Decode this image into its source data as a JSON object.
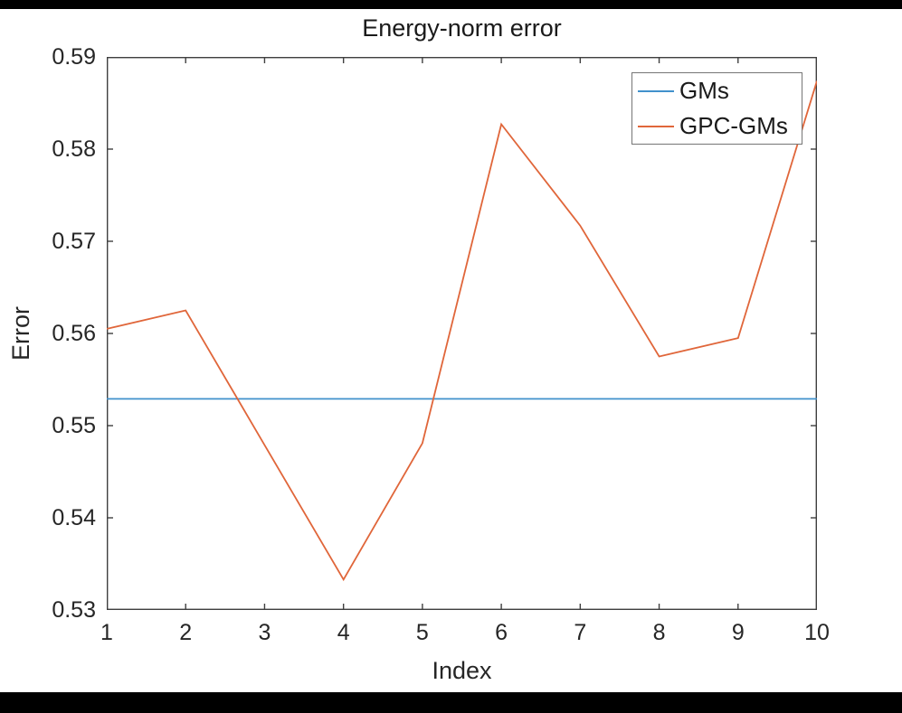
{
  "figure": {
    "title": "Energy-norm error",
    "xlabel": "Index",
    "ylabel": "Error"
  },
  "legend": {
    "position": "top-right",
    "entries": [
      {
        "label": "GMs"
      },
      {
        "label": "GPC-GMs"
      }
    ]
  },
  "colors": {
    "gms_line": "#4191CC",
    "gpc_gms_line": "#E0663A",
    "axis": "#3f3f3f",
    "text": "#262626",
    "plot_background": "#ffffff",
    "frame_background": "#000000"
  },
  "chart_data": {
    "type": "line",
    "title": "Energy-norm error",
    "xlabel": "Index",
    "ylabel": "Error",
    "x": [
      1,
      2,
      3,
      4,
      5,
      6,
      7,
      8,
      9,
      10
    ],
    "series": [
      {
        "name": "GMs",
        "color": "#4191CC",
        "values": [
          0.5529,
          0.5529,
          0.5529,
          0.5529,
          0.5529,
          0.5529,
          0.5529,
          0.5529,
          0.5529,
          0.5529
        ]
      },
      {
        "name": "GPC-GMs",
        "color": "#E0663A",
        "values": [
          0.5605,
          0.5625,
          0.5479,
          0.5333,
          0.5481,
          0.5827,
          0.5717,
          0.5575,
          0.5595,
          0.5874
        ]
      }
    ],
    "xlim": [
      1,
      10
    ],
    "ylim": [
      0.53,
      0.59
    ],
    "xticks": [
      1,
      2,
      3,
      4,
      5,
      6,
      7,
      8,
      9,
      10
    ],
    "xtick_labels": [
      "1",
      "2",
      "3",
      "4",
      "5",
      "6",
      "7",
      "8",
      "9",
      "10"
    ],
    "yticks": [
      0.53,
      0.54,
      0.55,
      0.56,
      0.57,
      0.58,
      0.59
    ],
    "ytick_labels": [
      "0.53",
      "0.54",
      "0.55",
      "0.56",
      "0.57",
      "0.58",
      "0.59"
    ],
    "grid": false,
    "legend_position": "top-right"
  }
}
